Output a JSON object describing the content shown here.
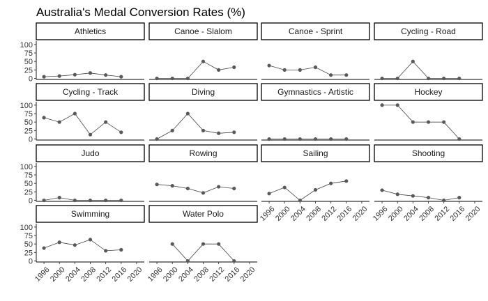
{
  "chart_data": {
    "type": "line",
    "title": "Australia's Medal Conversion Rates (%)",
    "xlabel": "",
    "ylabel": "",
    "x_ticks": [
      1996,
      2000,
      2004,
      2008,
      2012,
      2016,
      2020
    ],
    "y_ticks": [
      0,
      25,
      50,
      75,
      100
    ],
    "xlim": [
      1994,
      2022
    ],
    "ylim": [
      -3,
      110
    ],
    "grid": false,
    "panels": [
      {
        "name": "Athletics",
        "x": [
          1996,
          2000,
          2004,
          2008,
          2012,
          2016
        ],
        "y": [
          5,
          7,
          11,
          16,
          10,
          5
        ]
      },
      {
        "name": "Canoe - Slalom",
        "x": [
          1996,
          2000,
          2004,
          2008,
          2012,
          2016
        ],
        "y": [
          0,
          0,
          0,
          50,
          25,
          33
        ]
      },
      {
        "name": "Canoe - Sprint",
        "x": [
          1996,
          2000,
          2004,
          2008,
          2012,
          2016
        ],
        "y": [
          38,
          25,
          25,
          33,
          10,
          10
        ]
      },
      {
        "name": "Cycling - Road",
        "x": [
          1996,
          2000,
          2004,
          2008,
          2012,
          2016
        ],
        "y": [
          0,
          0,
          50,
          0,
          0,
          0
        ]
      },
      {
        "name": "Cycling - Track",
        "x": [
          1996,
          2000,
          2004,
          2008,
          2012,
          2016
        ],
        "y": [
          63,
          50,
          75,
          13,
          50,
          20
        ]
      },
      {
        "name": "Diving",
        "x": [
          1996,
          2000,
          2004,
          2008,
          2012,
          2016
        ],
        "y": [
          0,
          25,
          75,
          25,
          17,
          20
        ]
      },
      {
        "name": "Gymnastics - Artistic",
        "x": [
          1996,
          2000,
          2004,
          2008,
          2012,
          2016
        ],
        "y": [
          0,
          0,
          0,
          0,
          0,
          0
        ]
      },
      {
        "name": "Hockey",
        "x": [
          1996,
          2000,
          2004,
          2008,
          2012,
          2016
        ],
        "y": [
          100,
          100,
          50,
          50,
          50,
          0
        ]
      },
      {
        "name": "Judo",
        "x": [
          1996,
          2000,
          2004,
          2008,
          2012,
          2016
        ],
        "y": [
          0,
          8,
          0,
          0,
          0,
          0
        ]
      },
      {
        "name": "Rowing",
        "x": [
          1996,
          2000,
          2004,
          2008,
          2012,
          2016
        ],
        "y": [
          47,
          43,
          35,
          22,
          40,
          35
        ]
      },
      {
        "name": "Sailing",
        "x": [
          1996,
          2000,
          2004,
          2008,
          2012,
          2016
        ],
        "y": [
          20,
          38,
          0,
          31,
          50,
          57
        ]
      },
      {
        "name": "Shooting",
        "x": [
          1996,
          2000,
          2004,
          2008,
          2012,
          2016
        ],
        "y": [
          30,
          18,
          13,
          8,
          0,
          8
        ]
      },
      {
        "name": "Swimming",
        "x": [
          1996,
          2000,
          2004,
          2008,
          2012,
          2016
        ],
        "y": [
          38,
          55,
          47,
          63,
          30,
          33
        ]
      },
      {
        "name": "Water Polo",
        "x": [
          2000,
          2004,
          2008,
          2012,
          2016
        ],
        "y": [
          50,
          0,
          50,
          50,
          0
        ]
      }
    ]
  }
}
